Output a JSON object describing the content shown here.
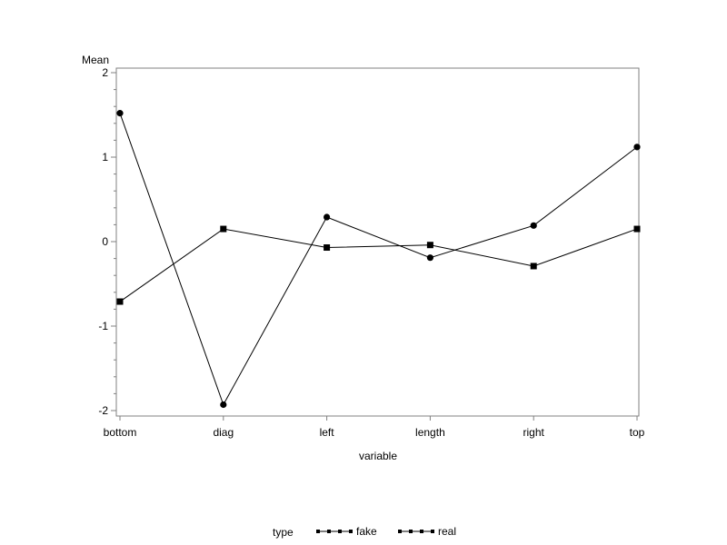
{
  "chart_data": {
    "type": "line",
    "title": "",
    "xlabel": "variable",
    "ylabel": "Mean",
    "categories": [
      "bottom",
      "diag",
      "left",
      "length",
      "right",
      "top"
    ],
    "ylim": [
      -2.05,
      2.0
    ],
    "yticks": [
      -2,
      -1,
      0,
      1,
      2
    ],
    "grid": false,
    "legend": {
      "title": "type",
      "placement": "bottom-center",
      "entries": [
        "fake",
        "real"
      ]
    },
    "series": [
      {
        "name": "fake",
        "marker": "circle",
        "values": [
          1.52,
          -1.93,
          0.29,
          -0.19,
          0.19,
          1.12
        ]
      },
      {
        "name": "real",
        "marker": "square",
        "values": [
          -0.71,
          0.15,
          -0.07,
          -0.04,
          -0.29,
          0.15
        ]
      }
    ],
    "colors": {
      "line": "#000000",
      "axis": "#808080",
      "background": "#ffffff"
    }
  }
}
